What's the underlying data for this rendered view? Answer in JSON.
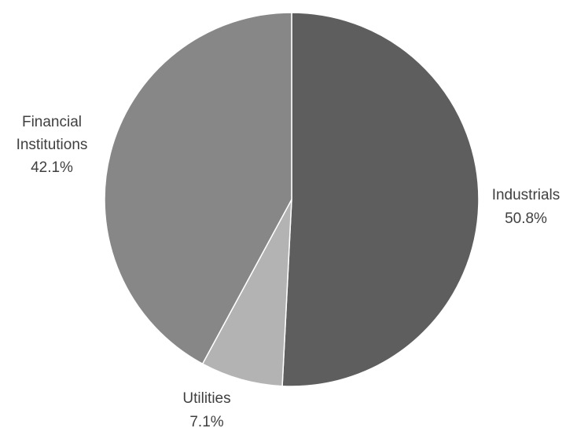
{
  "chart_data": {
    "type": "pie",
    "slices": [
      {
        "label": "Industrials",
        "value": 50.8,
        "value_label": "50.8%",
        "color": "#5e5e5e"
      },
      {
        "label": "Utilities",
        "value": 7.1,
        "value_label": "7.1%",
        "color": "#b3b3b3"
      },
      {
        "label": "Financial Institutions",
        "value": 42.1,
        "value_label": "42.1%",
        "color": "#878787"
      }
    ],
    "start": "12 o'clock",
    "direction": "clockwise",
    "legend": "none",
    "label_style": "outside"
  }
}
